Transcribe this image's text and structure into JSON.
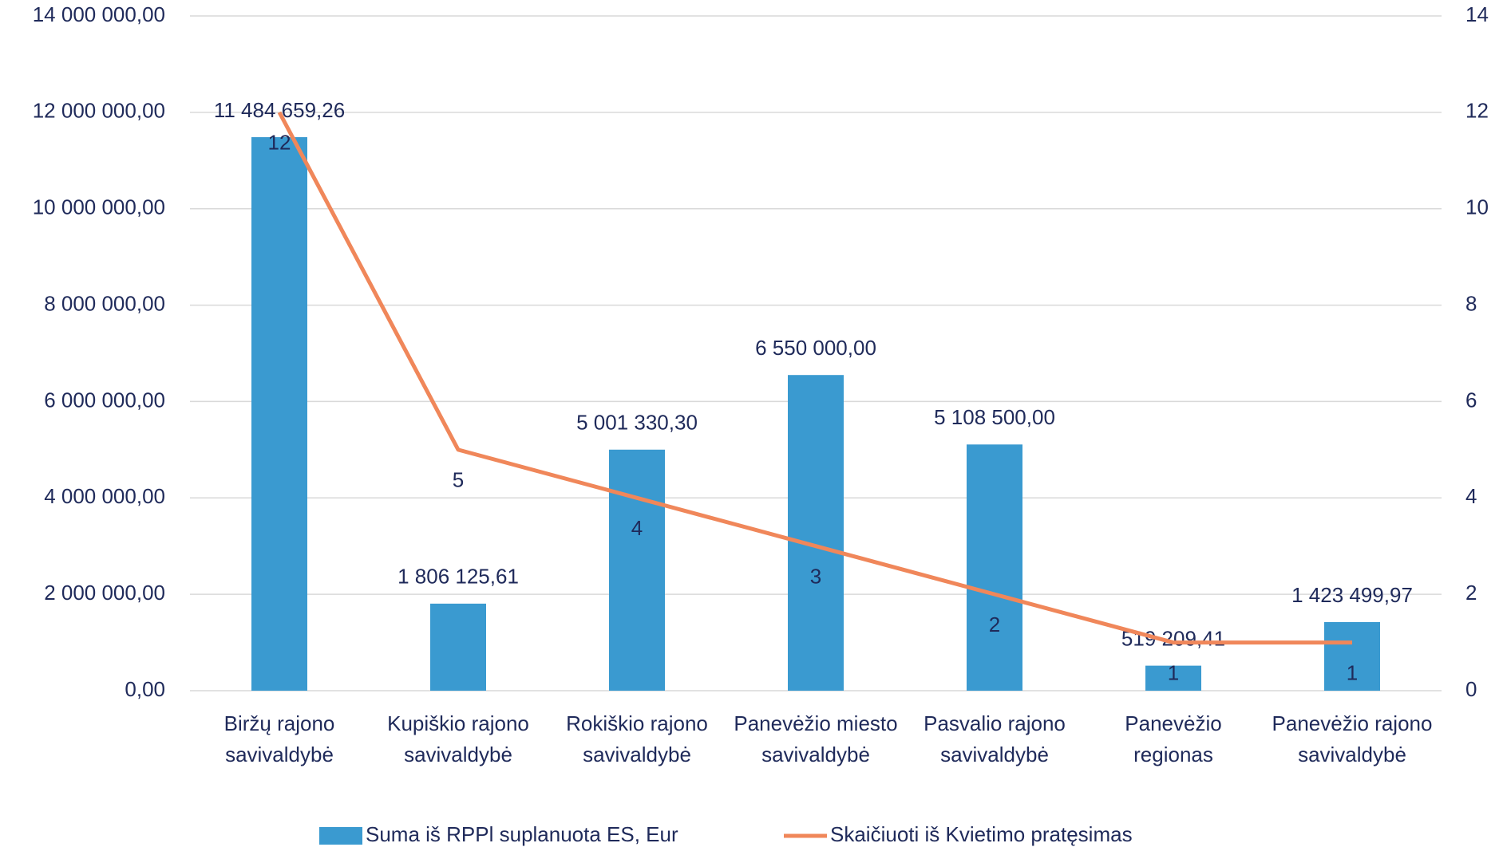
{
  "chart_data": {
    "type": "bar_line",
    "categories": [
      "Biržų rajono savivaldybė",
      "Kupiškio rajono savivaldybė",
      "Rokiškio rajono savivaldybė",
      "Panevėžio miesto savivaldybė",
      "Pasvalio rajono savivaldybė",
      "Panevėžio regionas",
      "Panevėžio rajono savivaldybė"
    ],
    "series": [
      {
        "name": "Suma iš RPPl suplanuota ES, Eur",
        "type": "bar",
        "color": "#3a9ad0",
        "values": [
          11484659.26,
          1806125.61,
          5001330.3,
          6550000.0,
          5108500.0,
          519209.41,
          1423499.97
        ],
        "value_labels": [
          "11 484 659,26",
          "1 806 125,61",
          "5 001 330,30",
          "6 550 000,00",
          "5 108 500,00",
          "519 209,41",
          "1 423 499,97"
        ]
      },
      {
        "name": "Skaičiuoti iš Kvietimo pratęsimas",
        "type": "line",
        "axis": "y2",
        "color": "#f0875a",
        "values": [
          12,
          5,
          4,
          3,
          2,
          1,
          1
        ]
      }
    ],
    "ylim": [
      0,
      14000000
    ],
    "yticks": [
      {
        "value": 0,
        "label": "0,00"
      },
      {
        "value": 2000000,
        "label": "2 000 000,00"
      },
      {
        "value": 4000000,
        "label": "4 000 000,00"
      },
      {
        "value": 6000000,
        "label": "6 000 000,00"
      },
      {
        "value": 8000000,
        "label": "8 000 000,00"
      },
      {
        "value": 10000000,
        "label": "10 000 000,00"
      },
      {
        "value": 12000000,
        "label": "12 000 000,00"
      },
      {
        "value": 14000000,
        "label": "14 000 000,00"
      }
    ],
    "y2lim": [
      0,
      14
    ],
    "y2ticks": [
      0,
      2,
      4,
      6,
      8,
      10,
      12,
      14
    ],
    "grid": true,
    "legend": "bottom"
  }
}
